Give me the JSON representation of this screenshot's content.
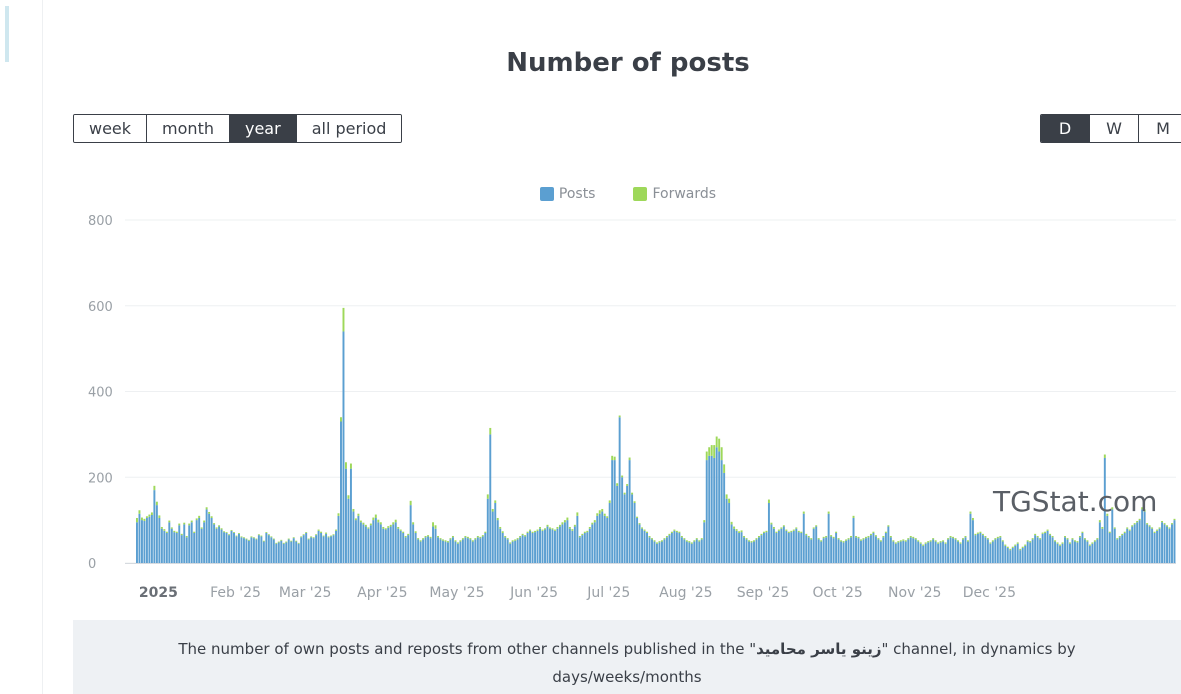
{
  "title": "Number of posts",
  "period_buttons": [
    {
      "label": "week",
      "active": false
    },
    {
      "label": "month",
      "active": false
    },
    {
      "label": "year",
      "active": true
    },
    {
      "label": "all period",
      "active": false
    }
  ],
  "granularity_buttons": [
    {
      "label": "D",
      "active": true
    },
    {
      "label": "W",
      "active": false
    },
    {
      "label": "M",
      "active": false
    }
  ],
  "colors": {
    "posts": "#5b9fd1",
    "forwards": "#9ed85a",
    "grid": "#eef0f2",
    "axis_text": "#9aa0a6"
  },
  "watermark": "TGStat.com",
  "caption": {
    "prefix": "The number of own posts and reposts from other channels published in the \"",
    "channel": "زینو یاسر محامید",
    "suffix": "\" channel, in dynamics by",
    "line2": "days/weeks/months"
  },
  "chart_data": {
    "type": "bar",
    "stacked": true,
    "legend": [
      "Posts",
      "Forwards"
    ],
    "legend_position": "top-center",
    "grid": true,
    "ylim": [
      0,
      800
    ],
    "y_ticks": [
      "0",
      "200",
      "400",
      "600",
      "800"
    ],
    "x_tick_labels": [
      "2025",
      "Feb '25",
      "Mar '25",
      "Apr '25",
      "May '25",
      "Jun '25",
      "Jul '25",
      "Aug '25",
      "Sep '25",
      "Oct '25",
      "Nov '25",
      "Dec '25"
    ],
    "x_tick_positions_day": [
      9,
      40,
      68,
      99,
      129,
      160,
      190,
      221,
      252,
      282,
      313,
      343
    ],
    "series": [
      {
        "name": "Posts",
        "values": [
          95,
          115,
          100,
          98,
          105,
          108,
          112,
          170,
          135,
          105,
          80,
          75,
          70,
          95,
          80,
          72,
          70,
          88,
          65,
          90,
          60,
          88,
          95,
          70,
          100,
          105,
          80,
          95,
          125,
          115,
          105,
          90,
          80,
          85,
          78,
          72,
          70,
          65,
          75,
          70,
          62,
          68,
          60,
          58,
          55,
          52,
          60,
          58,
          55,
          65,
          62,
          50,
          70,
          65,
          60,
          55,
          45,
          48,
          52,
          45,
          48,
          55,
          50,
          58,
          50,
          45,
          60,
          65,
          70,
          55,
          60,
          58,
          65,
          75,
          70,
          62,
          68,
          60,
          62,
          65,
          75,
          110,
          330,
          540,
          220,
          150,
          220,
          120,
          100,
          110,
          95,
          90,
          85,
          80,
          88,
          100,
          105,
          95,
          90,
          80,
          78,
          82,
          85,
          90,
          95,
          80,
          75,
          70,
          60,
          65,
          135,
          90,
          70,
          55,
          50,
          55,
          60,
          62,
          58,
          85,
          80,
          60,
          55,
          52,
          50,
          48,
          55,
          60,
          50,
          45,
          50,
          55,
          60,
          58,
          55,
          50,
          55,
          60,
          58,
          62,
          70,
          150,
          300,
          120,
          140,
          100,
          80,
          70,
          60,
          55,
          45,
          50,
          52,
          55,
          60,
          65,
          62,
          70,
          75,
          70,
          72,
          75,
          80,
          75,
          78,
          85,
          80,
          78,
          75,
          80,
          85,
          90,
          95,
          100,
          80,
          75,
          85,
          110,
          60,
          65,
          70,
          72,
          80,
          90,
          95,
          110,
          115,
          120,
          110,
          105,
          140,
          240,
          240,
          180,
          340,
          200,
          160,
          180,
          240,
          160,
          140,
          105,
          90,
          80,
          75,
          70,
          60,
          55,
          50,
          45,
          48,
          50,
          55,
          60,
          65,
          70,
          75,
          72,
          70,
          60,
          55,
          50,
          48,
          45,
          50,
          55,
          50,
          55,
          95,
          240,
          250,
          250,
          245,
          270,
          260,
          240,
          210,
          150,
          140,
          90,
          80,
          75,
          70,
          72,
          60,
          55,
          50,
          48,
          50,
          55,
          60,
          65,
          70,
          72,
          140,
          90,
          80,
          70,
          75,
          80,
          85,
          75,
          70,
          72,
          75,
          80,
          72,
          70,
          115,
          65,
          60,
          55,
          80,
          85,
          55,
          50,
          58,
          60,
          115,
          62,
          58,
          70,
          55,
          50,
          48,
          52,
          55,
          60,
          105,
          60,
          58,
          52,
          55,
          58,
          60,
          65,
          70,
          62,
          55,
          50,
          60,
          70,
          85,
          60,
          50,
          45,
          48,
          50,
          52,
          50,
          55,
          60,
          58,
          55,
          50,
          45,
          40,
          45,
          48,
          50,
          55,
          50,
          45,
          48,
          50,
          45,
          55,
          60,
          58,
          55,
          50,
          45,
          55,
          60,
          50,
          115,
          100,
          65,
          68,
          70,
          65,
          60,
          55,
          45,
          50,
          55,
          58,
          60,
          50,
          40,
          35,
          30,
          35,
          40,
          45,
          30,
          35,
          40,
          50,
          48,
          55,
          65,
          60,
          55,
          68,
          70,
          75,
          65,
          60,
          50,
          45,
          40,
          45,
          60,
          55,
          45,
          55,
          50,
          48,
          60,
          70,
          55,
          50,
          40,
          45,
          50,
          55,
          95,
          80,
          245,
          110,
          70,
          125,
          80,
          55,
          60,
          65,
          70,
          80,
          75,
          85,
          90,
          95,
          100,
          125,
          120,
          90,
          85,
          80,
          70,
          75,
          80,
          95,
          90,
          85,
          80,
          90,
          100
        ]
      },
      {
        "name": "Forwards",
        "values": [
          10,
          8,
          6,
          5,
          4,
          5,
          6,
          10,
          8,
          6,
          4,
          4,
          3,
          4,
          3,
          3,
          3,
          4,
          3,
          4,
          3,
          4,
          4,
          3,
          4,
          5,
          3,
          4,
          5,
          4,
          4,
          3,
          3,
          3,
          3,
          2,
          2,
          2,
          2,
          2,
          2,
          2,
          2,
          2,
          2,
          2,
          2,
          2,
          2,
          2,
          2,
          2,
          2,
          2,
          2,
          2,
          2,
          2,
          2,
          2,
          2,
          2,
          2,
          2,
          2,
          2,
          2,
          2,
          2,
          2,
          2,
          2,
          2,
          3,
          3,
          2,
          3,
          2,
          2,
          2,
          3,
          6,
          10,
          55,
          15,
          8,
          12,
          6,
          4,
          5,
          4,
          4,
          4,
          3,
          4,
          6,
          8,
          6,
          5,
          4,
          3,
          4,
          4,
          5,
          6,
          4,
          3,
          3,
          3,
          3,
          10,
          5,
          4,
          3,
          3,
          3,
          3,
          3,
          3,
          10,
          8,
          3,
          3,
          3,
          3,
          3,
          3,
          3,
          3,
          3,
          3,
          3,
          3,
          3,
          3,
          3,
          3,
          3,
          3,
          3,
          3,
          10,
          15,
          6,
          6,
          5,
          4,
          4,
          3,
          3,
          3,
          3,
          3,
          3,
          3,
          3,
          3,
          3,
          3,
          3,
          3,
          3,
          4,
          3,
          3,
          4,
          3,
          3,
          3,
          4,
          4,
          5,
          5,
          6,
          4,
          4,
          4,
          8,
          3,
          3,
          3,
          3,
          4,
          4,
          5,
          6,
          8,
          6,
          5,
          4,
          6,
          10,
          8,
          6,
          4,
          4,
          4,
          4,
          6,
          4,
          4,
          3,
          3,
          3,
          3,
          3,
          3,
          3,
          3,
          3,
          3,
          3,
          3,
          3,
          3,
          3,
          3,
          3,
          3,
          3,
          3,
          3,
          3,
          3,
          3,
          3,
          3,
          3,
          5,
          20,
          20,
          25,
          30,
          25,
          30,
          30,
          20,
          10,
          10,
          6,
          5,
          4,
          4,
          4,
          3,
          3,
          3,
          3,
          3,
          3,
          3,
          3,
          3,
          3,
          8,
          4,
          4,
          3,
          3,
          3,
          3,
          3,
          3,
          3,
          3,
          3,
          3,
          3,
          5,
          3,
          3,
          3,
          3,
          3,
          3,
          3,
          3,
          3,
          5,
          3,
          3,
          3,
          3,
          3,
          3,
          3,
          3,
          3,
          5,
          3,
          3,
          3,
          3,
          3,
          3,
          3,
          3,
          3,
          3,
          3,
          3,
          3,
          3,
          3,
          3,
          3,
          3,
          3,
          3,
          3,
          3,
          3,
          3,
          3,
          3,
          3,
          3,
          3,
          3,
          3,
          3,
          3,
          3,
          3,
          3,
          3,
          3,
          3,
          3,
          3,
          3,
          3,
          3,
          3,
          3,
          5,
          5,
          3,
          3,
          3,
          3,
          3,
          3,
          3,
          3,
          3,
          3,
          3,
          3,
          3,
          3,
          3,
          3,
          3,
          3,
          3,
          3,
          3,
          3,
          3,
          3,
          3,
          3,
          3,
          3,
          3,
          3,
          3,
          3,
          3,
          3,
          3,
          3,
          3,
          3,
          3,
          3,
          3,
          3,
          3,
          3,
          3,
          3,
          3,
          3,
          3,
          3,
          5,
          4,
          8,
          5,
          3,
          5,
          3,
          3,
          3,
          3,
          3,
          3,
          3,
          3,
          3,
          3,
          3,
          5,
          5,
          3,
          3,
          3,
          3,
          3,
          3,
          3,
          3,
          3,
          3,
          3,
          3
        ]
      }
    ]
  }
}
